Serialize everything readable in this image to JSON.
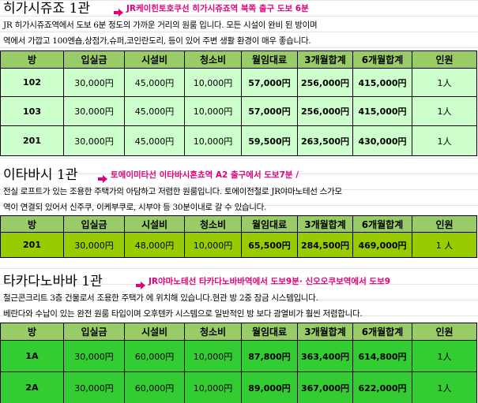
{
  "sections": [
    {
      "title": "히가시쥬죠 1관",
      "subtitle": "JR케이힌토호쿠선 히가시쥬죠역 북쪽 출구 도보 6분",
      "description": [
        "JR 히가시쥬죠역에서 도보 6분 정도의 가까운 거리의 원룸 입니다. 모든 시설이 완비 된 방이며",
        "역에서 가깝고 100엔숍,상점가,슈퍼,코인란도리, 등이 있어 주변 생활 환경이 매우 좋습니다."
      ],
      "table": {
        "header": [
          "방",
          "입실금",
          "시설비",
          "청소비",
          "월임대료",
          "3개월합계",
          "6개월합계",
          "인원"
        ],
        "rows": [
          [
            "102",
            "30,000円",
            "45,000円",
            "10,000円",
            "57,000円",
            "256,000円",
            "415,000円",
            "1人"
          ],
          [
            "103",
            "30,000円",
            "45,000円",
            "10,000円",
            "57,000円",
            "256,000円",
            "415,000円",
            "1人"
          ],
          [
            "201",
            "30,000円",
            "45,000円",
            "10,000円",
            "59,500円",
            "263,500円",
            "430,000円",
            "1人"
          ]
        ]
      }
    },
    {
      "title": "이타바시 1관",
      "subtitle": "토에이미타선 이타바시혼쵸역 A2 출구에서 도보7분 /",
      "description": [
        "전실 로프트가 있는 조용한 주택가의 아담하고 저렴한 원룸입니다. 토에이전철로 JR야마노테선 스가모",
        "역이 연결되 있어서 신주쿠, 이케부쿠로, 시부야 등 30분이내로 갈 수 있습니다."
      ],
      "table": {
        "header": [
          "방",
          "입실금",
          "시설비",
          "청소비",
          "월임대료",
          "3개월합계",
          "6개월합계",
          "인원"
        ],
        "rows": [
          [
            "201",
            "30,000円",
            "48,000円",
            "10,000円",
            "65,500円",
            "284,500円",
            "469,000円",
            "1 人"
          ]
        ]
      }
    },
    {
      "title": "타카다노바바 1관",
      "subtitle": "JR야마노테선 타카다노바바역에서 도보9분· 신오오쿠보역에서 도보9",
      "description": [
        "철근콘크리트  3층 건물로서 조용한 주택가 에 위치해 있습니다.현관 방 2중 잠금 시스템입니다.",
        "베란다와 수납이 있는 완전 원룸 타입이며 오후텐카 시스템으로 일반적인 방 보다 광열비가 훨씬 저렴합니다."
      ],
      "table": {
        "header": [
          "방",
          "입실금",
          "시설비",
          "청소비",
          "월임대료",
          "3개월합계",
          "6개월합계",
          "인원"
        ],
        "rows": [
          [
            "1A",
            "30,000円",
            "60,000円",
            "10,000円",
            "87,800円",
            "363,400円",
            "614,800円",
            "1人"
          ],
          [
            "2A",
            "30,000円",
            "60,000円",
            "10,000円",
            "89,000円",
            "367,000円",
            "622,000円",
            "1人"
          ]
        ]
      }
    }
  ]
}
